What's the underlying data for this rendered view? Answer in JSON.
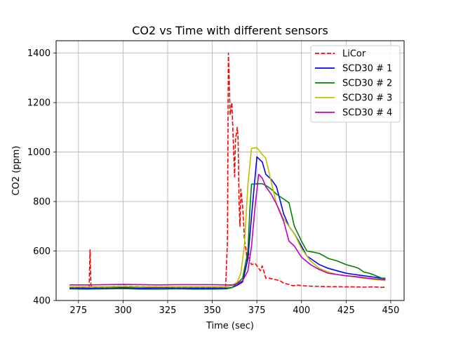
{
  "chart_data": {
    "type": "line",
    "title": "CO2 vs Time with different sensors",
    "xlabel": "Time (sec)",
    "ylabel": "CO2 (ppm)",
    "xlim": [
      262.5,
      457.5
    ],
    "ylim": [
      400,
      1450
    ],
    "xticks": [
      275,
      300,
      325,
      350,
      375,
      400,
      425,
      450
    ],
    "yticks": [
      400,
      600,
      800,
      1000,
      1200,
      1400
    ],
    "grid": true,
    "legend_position": "top-right",
    "series": [
      {
        "name": "LiCor",
        "color": "#ff0000",
        "dash": "dashed",
        "x": [
          270,
          275,
          280,
          281,
          281.5,
          282,
          283,
          285,
          290,
          295,
          300,
          310,
          320,
          330,
          340,
          350,
          355,
          357.5,
          358.5,
          359,
          359.5,
          360,
          361,
          362,
          362.5,
          363,
          364,
          364.5,
          365,
          365.5,
          366,
          367,
          367.5,
          368,
          369,
          369.5,
          370,
          371,
          372,
          374,
          376,
          377,
          378,
          380,
          382,
          385,
          388,
          390,
          393,
          395,
          398,
          400,
          405,
          410,
          415,
          420,
          425,
          430,
          435,
          440,
          445,
          447
        ],
        "y": [
          455,
          454,
          456,
          455,
          605,
          460,
          455,
          455,
          455,
          457,
          458,
          456,
          455,
          455,
          455,
          455,
          455,
          455,
          640,
          1400,
          1300,
          1150,
          1200,
          1000,
          900,
          1050,
          1100,
          1050,
          800,
          700,
          850,
          780,
          720,
          650,
          600,
          560,
          610,
          560,
          545,
          550,
          530,
          520,
          540,
          490,
          490,
          485,
          480,
          470,
          465,
          460,
          462,
          460,
          458,
          457,
          456,
          456,
          455,
          455,
          454,
          455,
          453,
          454
        ]
      },
      {
        "name": "SCD30 # 1",
        "color": "#0000ff",
        "dash": "solid",
        "x": [
          270,
          280,
          290,
          300,
          310,
          320,
          330,
          340,
          350,
          358,
          361,
          364,
          367,
          370,
          372,
          374,
          375,
          378,
          380,
          383,
          386,
          390,
          393,
          396,
          400,
          403,
          407,
          410,
          415,
          420,
          425,
          430,
          435,
          440,
          445,
          447
        ],
        "y": [
          450,
          450,
          450,
          452,
          450,
          451,
          450,
          450,
          450,
          450,
          452,
          462,
          475,
          570,
          740,
          900,
          980,
          960,
          910,
          890,
          860,
          750,
          700,
          670,
          620,
          580,
          560,
          545,
          530,
          520,
          510,
          505,
          500,
          495,
          490,
          490
        ]
      },
      {
        "name": "SCD30 # 2",
        "color": "#008000",
        "dash": "solid",
        "x": [
          270,
          280,
          290,
          300,
          310,
          320,
          330,
          340,
          350,
          358,
          361,
          364,
          367,
          370,
          371,
          372,
          375,
          378,
          380,
          383,
          386,
          390,
          393,
          396,
          400,
          403,
          407,
          410,
          415,
          420,
          425,
          430,
          432,
          435,
          438,
          440,
          445,
          447
        ],
        "y": [
          447,
          446,
          447,
          448,
          446,
          446,
          447,
          446,
          446,
          447,
          452,
          470,
          490,
          600,
          760,
          870,
          872,
          872,
          865,
          850,
          830,
          810,
          795,
          700,
          640,
          600,
          595,
          590,
          570,
          560,
          545,
          535,
          530,
          515,
          510,
          505,
          490,
          488
        ]
      },
      {
        "name": "SCD30 # 3",
        "color": "#bfbf00",
        "dash": "solid",
        "x": [
          270,
          280,
          290,
          300,
          310,
          320,
          330,
          340,
          350,
          358,
          361,
          364,
          366,
          368,
          370,
          372,
          375,
          378,
          380,
          383,
          386,
          390,
          393,
          396,
          400,
          405,
          410,
          415,
          420,
          425,
          430,
          435,
          440,
          445,
          447
        ],
        "y": [
          455,
          456,
          456,
          457,
          455,
          455,
          456,
          456,
          456,
          456,
          460,
          475,
          510,
          620,
          870,
          1015,
          1018,
          990,
          975,
          880,
          790,
          730,
          700,
          670,
          610,
          560,
          530,
          515,
          505,
          500,
          495,
          490,
          485,
          482,
          480
        ]
      },
      {
        "name": "SCD30 # 4",
        "color": "#bf00bf",
        "dash": "solid",
        "x": [
          270,
          280,
          290,
          300,
          310,
          320,
          330,
          340,
          350,
          358,
          361,
          364,
          367,
          370,
          372,
          374,
          376,
          378,
          380,
          383,
          386,
          390,
          393,
          396,
          400,
          405,
          410,
          415,
          420,
          425,
          430,
          435,
          440,
          445,
          447
        ],
        "y": [
          463,
          463,
          464,
          465,
          464,
          463,
          464,
          464,
          464,
          463,
          463,
          467,
          480,
          520,
          620,
          780,
          910,
          895,
          860,
          830,
          790,
          720,
          640,
          620,
          575,
          545,
          525,
          510,
          505,
          500,
          497,
          492,
          488,
          485,
          484
        ]
      }
    ]
  }
}
